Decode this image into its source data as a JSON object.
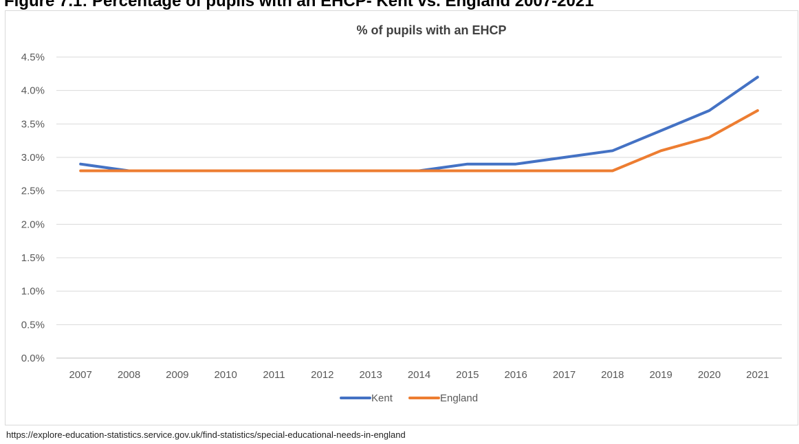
{
  "heading": "Figure 7.1: Percentage of pupils with an EHCP- Kent vs. England 2007-2021",
  "source": "https://explore-education-statistics.service.gov.uk/find-statistics/special-educational-needs-in-england",
  "chart_data": {
    "type": "line",
    "title": "% of pupils with an EHCP",
    "xlabel": "",
    "ylabel": "",
    "categories": [
      "2007",
      "2008",
      "2009",
      "2010",
      "2011",
      "2012",
      "2013",
      "2014",
      "2015",
      "2016",
      "2017",
      "2018",
      "2019",
      "2020",
      "2021"
    ],
    "ylim": [
      0,
      4.5
    ],
    "ytick_labels": [
      "0.0%",
      "0.5%",
      "1.0%",
      "1.5%",
      "2.0%",
      "2.5%",
      "3.0%",
      "3.5%",
      "4.0%",
      "4.5%"
    ],
    "grid": true,
    "legend_position": "bottom",
    "series": [
      {
        "name": "Kent",
        "color": "#4472c4",
        "values": [
          2.9,
          2.8,
          2.8,
          2.8,
          2.8,
          2.8,
          2.8,
          2.8,
          2.9,
          2.9,
          3.0,
          3.1,
          3.4,
          3.7,
          4.2
        ]
      },
      {
        "name": "England",
        "color": "#ed7d31",
        "values": [
          2.8,
          2.8,
          2.8,
          2.8,
          2.8,
          2.8,
          2.8,
          2.8,
          2.8,
          2.8,
          2.8,
          2.8,
          3.1,
          3.3,
          3.7
        ]
      }
    ]
  }
}
